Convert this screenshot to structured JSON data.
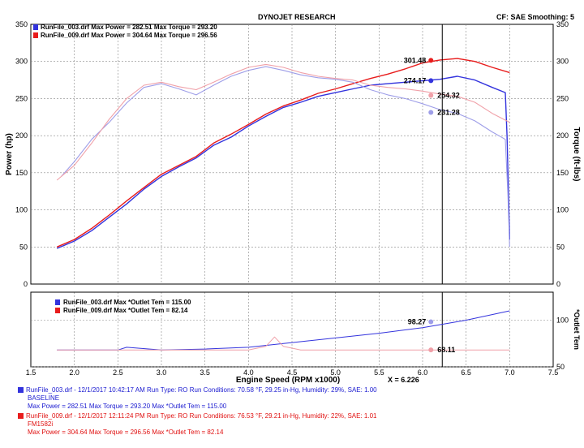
{
  "header": {
    "title": "DYNOJET RESEARCH",
    "right_info": "CF: SAE  Smoothing: 5"
  },
  "colors": {
    "run1": "#3333dd",
    "run1_torque": "#9e9ee8",
    "run2": "#e81c1c",
    "run2_torque": "#f0a0a8",
    "cursor": "#000000",
    "grid": "#888888"
  },
  "chart_data": [
    {
      "type": "line",
      "title": "DYNOJET RESEARCH",
      "xlabel": "Engine Speed (RPM x1000)",
      "ylabel_left": "Power (hp)",
      "ylabel_right": "Torque (ft-lbs)",
      "xlim": [
        1.5,
        7.5
      ],
      "ylim": [
        0,
        350
      ],
      "x_ticks": [
        "1.5",
        "2.0",
        "2.5",
        "3.0",
        "3.5",
        "4.0",
        "4.5",
        "5.0",
        "5.5",
        "6.0",
        "6.5",
        "7.0",
        "7.5"
      ],
      "y_ticks": [
        "0",
        "50",
        "100",
        "150",
        "200",
        "250",
        "300",
        "350"
      ],
      "grid": true,
      "legend": [
        "RunFile_003.drf Max Power = 282.51     Max Torque = 293.20",
        "RunFile_009.drf Max Power = 304.64     Max Torque = 296.56"
      ],
      "cursor_x": 6.226,
      "cursor_label": "X = 6.226",
      "series": [
        {
          "name": "RunFile_003.drf Power",
          "color": "#3333dd",
          "x": [
            1.8,
            2.0,
            2.2,
            2.4,
            2.6,
            2.8,
            3.0,
            3.2,
            3.4,
            3.6,
            3.8,
            4.0,
            4.2,
            4.4,
            4.6,
            4.8,
            5.0,
            5.2,
            5.4,
            5.6,
            5.8,
            6.0,
            6.2,
            6.4,
            6.6,
            6.8,
            6.95,
            6.97,
            7.0
          ],
          "y": [
            48,
            58,
            72,
            90,
            108,
            128,
            145,
            158,
            170,
            187,
            198,
            213,
            226,
            238,
            245,
            253,
            258,
            263,
            268,
            270,
            272,
            274,
            276,
            280,
            275,
            265,
            258,
            200,
            60
          ]
        },
        {
          "name": "RunFile_009.drf Power",
          "color": "#e81c1c",
          "x": [
            1.8,
            2.0,
            2.2,
            2.4,
            2.6,
            2.8,
            3.0,
            3.2,
            3.4,
            3.6,
            3.8,
            4.0,
            4.2,
            4.4,
            4.6,
            4.8,
            5.0,
            5.2,
            5.4,
            5.6,
            5.8,
            6.0,
            6.2,
            6.4,
            6.6,
            6.8,
            7.0
          ],
          "y": [
            50,
            60,
            75,
            93,
            112,
            130,
            148,
            160,
            172,
            190,
            202,
            215,
            229,
            240,
            248,
            257,
            263,
            270,
            277,
            283,
            290,
            298,
            302,
            304,
            300,
            292,
            285
          ]
        },
        {
          "name": "RunFile_003.drf Torque",
          "color": "#9e9ee8",
          "x": [
            1.85,
            2.0,
            2.2,
            2.4,
            2.6,
            2.8,
            3.0,
            3.2,
            3.4,
            3.6,
            3.8,
            4.0,
            4.2,
            4.4,
            4.6,
            4.8,
            5.0,
            5.2,
            5.4,
            5.6,
            5.8,
            6.0,
            6.2,
            6.4,
            6.6,
            6.8,
            6.95,
            6.98,
            7.0
          ],
          "y": [
            145,
            165,
            195,
            218,
            244,
            265,
            270,
            263,
            255,
            268,
            280,
            288,
            293,
            288,
            282,
            278,
            276,
            272,
            262,
            255,
            250,
            243,
            235,
            230,
            220,
            205,
            195,
            120,
            50
          ]
        },
        {
          "name": "RunFile_009.drf Torque",
          "color": "#f0a0a8",
          "x": [
            1.8,
            2.0,
            2.2,
            2.4,
            2.6,
            2.8,
            3.0,
            3.2,
            3.4,
            3.6,
            3.8,
            4.0,
            4.2,
            4.4,
            4.6,
            4.8,
            5.0,
            5.2,
            5.4,
            5.6,
            5.8,
            6.0,
            6.2,
            6.4,
            6.6,
            6.8,
            7.0
          ],
          "y": [
            140,
            160,
            190,
            222,
            250,
            268,
            272,
            266,
            262,
            272,
            283,
            292,
            296,
            292,
            285,
            280,
            277,
            275,
            268,
            265,
            263,
            260,
            256,
            253,
            245,
            230,
            218
          ]
        }
      ],
      "annotations": [
        {
          "label": "301.48",
          "x": 6.226,
          "y": 301.48,
          "color": "#e81c1c",
          "side": "left"
        },
        {
          "label": "274.17",
          "x": 6.226,
          "y": 274.17,
          "color": "#3333dd",
          "side": "left"
        },
        {
          "label": "254.32",
          "x": 6.226,
          "y": 254.32,
          "color": "#f0a0a8",
          "side": "right"
        },
        {
          "label": "231.28",
          "x": 6.226,
          "y": 231.28,
          "color": "#9e9ee8",
          "side": "right"
        }
      ]
    },
    {
      "type": "line",
      "ylabel_right": "*Outlet Tem",
      "xlim": [
        1.5,
        7.5
      ],
      "ylim": [
        50,
        130
      ],
      "y_ticks": [
        "50",
        "100"
      ],
      "grid": true,
      "legend": [
        "RunFile_003.drf Max *Outlet Tem = 115.00",
        "RunFile_009.drf Max *Outlet Tem = 82.14"
      ],
      "series": [
        {
          "name": "RunFile_003.drf *Outlet Tem",
          "color": "#3333dd",
          "x": [
            1.8,
            2.0,
            2.5,
            2.6,
            3.0,
            3.5,
            4.0,
            4.5,
            5.0,
            5.5,
            6.0,
            6.5,
            7.0
          ],
          "y": [
            68,
            68,
            68,
            71,
            68,
            69,
            71,
            76,
            81,
            86,
            92,
            100,
            110
          ]
        },
        {
          "name": "RunFile_009.drf *Outlet Tem",
          "color": "#f0a0a8",
          "x": [
            1.8,
            2.0,
            2.5,
            3.0,
            3.5,
            4.0,
            4.2,
            4.3,
            4.4,
            4.6,
            5.0,
            5.5,
            6.0,
            6.5,
            7.0
          ],
          "y": [
            68,
            68,
            68,
            68,
            68,
            68,
            72,
            82,
            72,
            68,
            68,
            68,
            68,
            68,
            68
          ]
        }
      ],
      "annotations": [
        {
          "label": "98.27",
          "x": 6.226,
          "y": 98.27,
          "color": "#9e9ee8",
          "side": "left"
        },
        {
          "label": "68.11",
          "x": 6.226,
          "y": 68.11,
          "color": "#f0a0a8",
          "side": "right"
        }
      ]
    }
  ],
  "footer": {
    "run1": {
      "line1": "RunFile_003.drf - 12/1/2017 10:42:17 AM  Run Type: RO  Run Conditions: 70.58 °F, 29.25 in-Hg,  Humidity:  29%, SAE: 1.00",
      "line2": "BASELINE",
      "line3": "Max Power = 282.51  Max Torque = 293.20  Max *Outlet Tem = 115.00"
    },
    "run2": {
      "line1": "RunFile_009.drf - 12/1/2017 12:11:24 PM  Run Type: RO  Run Conditions: 76.53 °F, 29.21 in-Hg,  Humidity:  22%, SAE: 1.01",
      "line2": "FM1582i",
      "line3": "Max Power = 304.64  Max Torque = 296.56  Max *Outlet Tem = 82.14"
    }
  }
}
